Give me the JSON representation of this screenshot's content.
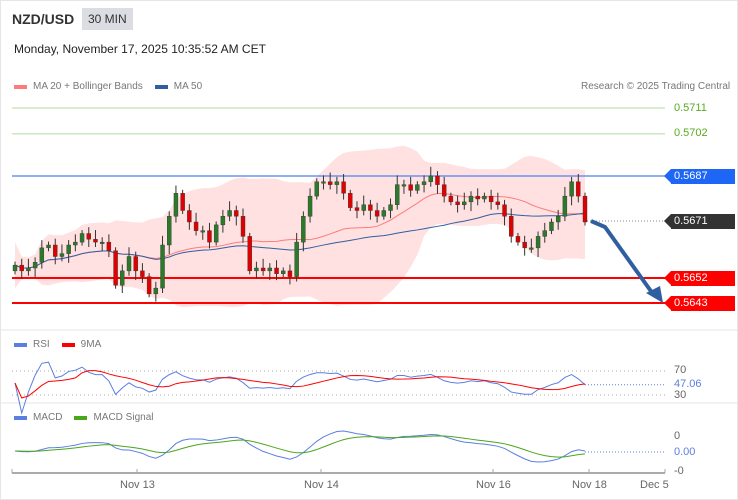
{
  "header": {
    "symbol": "NZD/USD",
    "timeframe": "30 MIN",
    "datetime": "Monday, November 17, 2025 10:35:52 AM CET"
  },
  "legend": {
    "ma20": "MA 20 + Bollinger Bands",
    "ma50": "MA 50",
    "copyright": "Research © 2025 Trading Central"
  },
  "colors": {
    "ma20": "#ff7b7b",
    "ma50": "#2f5fa0",
    "up": "#2a7a2a",
    "down": "#e00000",
    "resistance": "#1e66f5",
    "support": "#ff0000",
    "target": "#66aa33",
    "current": "#333333"
  },
  "levels": {
    "r2": "0.5711",
    "r1": "0.5702",
    "pivot": "0.5687",
    "current": "0.5671",
    "s1": "0.5652",
    "s2": "0.5643"
  },
  "rsi": {
    "label": "RSI",
    "ma_label": "9MA",
    "upper": "70",
    "lower": "30",
    "value": "47.06"
  },
  "macd": {
    "label": "MACD",
    "signal_label": "MACD Signal",
    "top": "0",
    "value": "0.00",
    "bottom": "-0"
  },
  "xaxis": [
    "Nov 13",
    "Nov 14",
    "Nov 16",
    "Nov 18",
    "Dec 5"
  ],
  "chart_data": {
    "type": "candlestick",
    "symbol": "NZD/USD",
    "interval": "30 MIN",
    "closes": [
      0.5656,
      0.5654,
      0.5655,
      0.5657,
      0.5662,
      0.5663,
      0.5659,
      0.566,
      0.5663,
      0.5664,
      0.5667,
      0.5665,
      0.5664,
      0.5664,
      0.5661,
      0.5649,
      0.5654,
      0.5659,
      0.5654,
      0.5652,
      0.5646,
      0.5648,
      0.5663,
      0.5673,
      0.5681,
      0.5675,
      0.5671,
      0.5668,
      0.5668,
      0.5664,
      0.567,
      0.5673,
      0.5675,
      0.5673,
      0.5666,
      0.5654,
      0.5655,
      0.5654,
      0.5655,
      0.5653,
      0.5654,
      0.5652,
      0.5664,
      0.5673,
      0.568,
      0.5685,
      0.5685,
      0.5684,
      0.5685,
      0.5681,
      0.5676,
      0.5675,
      0.5677,
      0.5675,
      0.5673,
      0.5675,
      0.5677,
      0.5684,
      0.5684,
      0.5682,
      0.5684,
      0.5685,
      0.5687,
      0.5684,
      0.568,
      0.5678,
      0.5677,
      0.5678,
      0.568,
      0.5679,
      0.568,
      0.5678,
      0.5677,
      0.5673,
      0.5666,
      0.5664,
      0.5662,
      0.5662,
      0.5666,
      0.5668,
      0.5671,
      0.5673,
      0.568,
      0.5685,
      0.568,
      0.5671
    ],
    "ylim": [
      0.563,
      0.572
    ],
    "rsi_last": 47.06
  }
}
